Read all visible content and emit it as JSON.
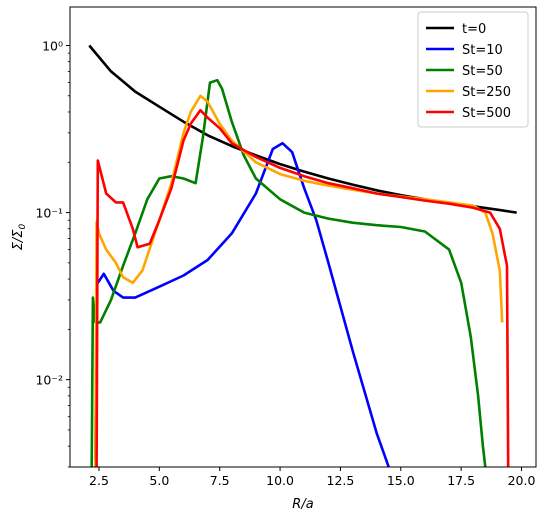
{
  "chart_data": {
    "type": "line",
    "xlabel": "R/a",
    "ylabel": "Σ/Σ0",
    "x_scale": "linear",
    "y_scale": "log",
    "xlim": [
      1.3,
      20.6
    ],
    "ylim": [
      0.003,
      1.7
    ],
    "x_ticks": [
      2.5,
      5.0,
      7.5,
      10.0,
      12.5,
      15.0,
      17.5,
      20.0
    ],
    "x_tick_labels": [
      "2.5",
      "5.0",
      "7.5",
      "10.0",
      "12.5",
      "15.0",
      "17.5",
      "20.0"
    ],
    "y_ticks": [
      0.01,
      0.1,
      1
    ],
    "y_tick_labels": [
      "10⁻²",
      "10⁻¹",
      "10⁰"
    ],
    "grid": false,
    "legend_position": "top-right",
    "series": [
      {
        "name": "t=0",
        "color": "#000000",
        "x": [
          2.1,
          3,
          4,
          5,
          6,
          7,
          8,
          9,
          10,
          11,
          12,
          13,
          14,
          15,
          16,
          17,
          18,
          19,
          19.8
        ],
        "y": [
          1.0,
          0.7,
          0.53,
          0.43,
          0.35,
          0.29,
          0.25,
          0.22,
          0.195,
          0.176,
          0.16,
          0.147,
          0.136,
          0.127,
          0.12,
          0.114,
          0.109,
          0.104,
          0.1
        ]
      },
      {
        "name": "St=10",
        "color": "#0000ff",
        "x": [
          2.35,
          2.4,
          2.7,
          3.1,
          3.5,
          4,
          5,
          6,
          7,
          8,
          9,
          9.7,
          10.1,
          10.5,
          11,
          11.5,
          12,
          13,
          14,
          14.5
        ],
        "y": [
          0.0033,
          0.037,
          0.043,
          0.034,
          0.031,
          0.031,
          0.036,
          0.042,
          0.052,
          0.075,
          0.13,
          0.24,
          0.26,
          0.23,
          0.14,
          0.09,
          0.05,
          0.015,
          0.0048,
          0.003
        ]
      },
      {
        "name": "St=50",
        "color": "#008000",
        "x": [
          2.2,
          2.25,
          2.35,
          2.55,
          3,
          3.5,
          4,
          4.5,
          5,
          5.5,
          6,
          6.5,
          6.8,
          7.1,
          7.4,
          7.6,
          8,
          8.5,
          9,
          10,
          11,
          12,
          13,
          14,
          15,
          16,
          17,
          17.5,
          17.9,
          18.2,
          18.4,
          18.5
        ],
        "y": [
          0.003,
          0.031,
          0.022,
          0.022,
          0.03,
          0.048,
          0.075,
          0.12,
          0.16,
          0.165,
          0.16,
          0.15,
          0.28,
          0.6,
          0.62,
          0.55,
          0.35,
          0.22,
          0.16,
          0.12,
          0.1,
          0.092,
          0.087,
          0.084,
          0.082,
          0.077,
          0.06,
          0.038,
          0.018,
          0.008,
          0.004,
          0.003
        ]
      },
      {
        "name": "St=250",
        "color": "#ffa500",
        "x": [
          2.35,
          2.4,
          2.5,
          2.8,
          3.2,
          3.5,
          3.9,
          4.3,
          5,
          5.5,
          6,
          6.3,
          6.7,
          7,
          7.5,
          8,
          9,
          10,
          11,
          12,
          13,
          14,
          15,
          16,
          17,
          18,
          18.5,
          18.8,
          19.1,
          19.2
        ],
        "y": [
          0.003,
          0.088,
          0.075,
          0.06,
          0.05,
          0.041,
          0.038,
          0.045,
          0.09,
          0.15,
          0.3,
          0.4,
          0.5,
          0.46,
          0.34,
          0.27,
          0.2,
          0.17,
          0.155,
          0.145,
          0.137,
          0.13,
          0.125,
          0.12,
          0.115,
          0.11,
          0.1,
          0.075,
          0.045,
          0.022
        ]
      },
      {
        "name": "St=500",
        "color": "#ff0000",
        "x": [
          2.4,
          2.45,
          2.8,
          3.2,
          3.5,
          3.9,
          4.1,
          4.6,
          5,
          5.5,
          6,
          6.3,
          6.7,
          7,
          7.5,
          8,
          9,
          10,
          11,
          12,
          13,
          14,
          15,
          16,
          17,
          18,
          18.7,
          19.1,
          19.4,
          19.45
        ],
        "y": [
          0.003,
          0.205,
          0.13,
          0.115,
          0.115,
          0.08,
          0.062,
          0.065,
          0.09,
          0.14,
          0.27,
          0.34,
          0.41,
          0.37,
          0.32,
          0.26,
          0.215,
          0.185,
          0.165,
          0.15,
          0.14,
          0.13,
          0.124,
          0.118,
          0.113,
          0.107,
          0.1,
          0.08,
          0.048,
          0.003
        ]
      }
    ]
  }
}
